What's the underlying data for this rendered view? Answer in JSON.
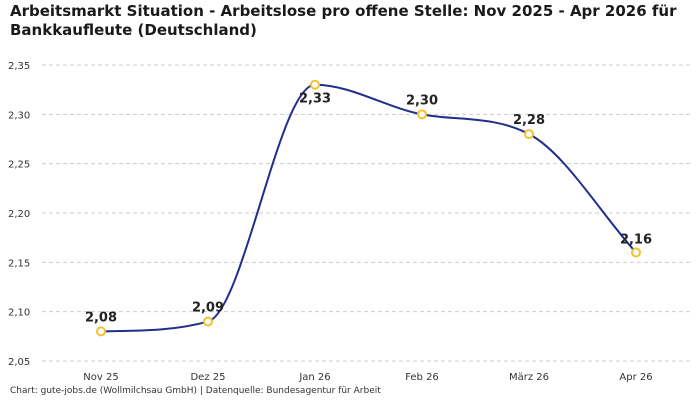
{
  "header": {
    "title": "Arbeitsmarkt Situation - Arbeitslose pro offene Stelle: Nov 2025 - Apr 2026 für Bankkaufleute (Deutschland)"
  },
  "footer": {
    "source": "Chart: gute-jobs.de (Wollmilchsau GmbH) | Datenquelle: Bundesagentur für Arbeit"
  },
  "chart_data": {
    "type": "line",
    "title": "Arbeitsmarkt Situation - Arbeitslose pro offene Stelle: Nov 2025 - Apr 2026 für Bankkaufleute (Deutschland)",
    "xlabel": "",
    "ylabel": "",
    "categories": [
      "Nov 25",
      "Dez 25",
      "Jan 26",
      "Feb 26",
      "März 26",
      "Apr 26"
    ],
    "series": [
      {
        "values": [
          2.08,
          2.09,
          2.33,
          2.3,
          2.28,
          2.16
        ]
      }
    ],
    "data_labels": [
      "2,08",
      "2,09",
      "2,33",
      "2,30",
      "2,28",
      "2,16"
    ],
    "ylim": [
      2.05,
      2.35
    ],
    "yticks": [
      2.05,
      2.1,
      2.15,
      2.2,
      2.25,
      2.3,
      2.35
    ],
    "ytick_labels": [
      "2,05",
      "2,10",
      "2,15",
      "2,20",
      "2,25",
      "2,30",
      "2,35"
    ],
    "grid": true,
    "legend": "none",
    "colors": {
      "line": "#1f2f8a",
      "marker_stroke": "#f2c230",
      "marker_fill": "#ffffff",
      "grid": "#cccccc"
    }
  }
}
